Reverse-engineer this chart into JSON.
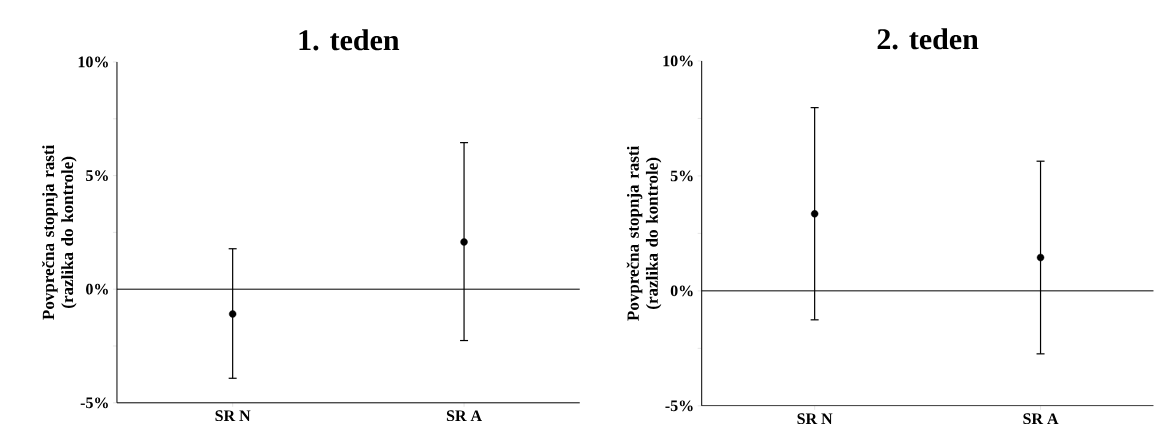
{
  "chart_data": [
    {
      "type": "scatter",
      "title": "1. teden",
      "ylabel": "Povprečna stopnja rasti (razlika do kontrole)",
      "categories": [
        "SR  N",
        "SR  A"
      ],
      "series": [
        {
          "color": "#000000",
          "values": [
            -1.09,
            2.08
          ],
          "errors": [
            [
              -3.92,
              1.78
            ],
            [
              -2.26,
              6.45
            ]
          ]
        }
      ],
      "ylim": [
        -5,
        10
      ],
      "yticks": [
        {
          "value": -5,
          "label": "-5%"
        },
        {
          "value": -2.5,
          "label": null
        },
        {
          "value": 0,
          "label": "0%"
        },
        {
          "value": 2.5,
          "label": null
        },
        {
          "value": 5,
          "label": "5%"
        },
        {
          "value": 7.5,
          "label": null
        },
        {
          "value": 10,
          "label": "10%"
        }
      ],
      "ref_lines": [
        {
          "axis": "y",
          "value": 0,
          "color": "#000000"
        }
      ],
      "marker": "circle"
    },
    {
      "type": "scatter",
      "title": "2. teden",
      "ylabel": "Povprečna stopnja rasti (razlika do kontrole)",
      "categories": [
        "SR  N",
        "SR  A"
      ],
      "series": [
        {
          "color": "#000000",
          "values": [
            3.35,
            1.45
          ],
          "errors": [
            [
              -1.26,
              7.97
            ],
            [
              -2.74,
              5.64
            ]
          ]
        }
      ],
      "ylim": [
        -5,
        10
      ],
      "yticks": [
        {
          "value": -5,
          "label": "-5%"
        },
        {
          "value": -2.5,
          "label": null
        },
        {
          "value": 0,
          "label": "0%"
        },
        {
          "value": 2.5,
          "label": null
        },
        {
          "value": 5,
          "label": "5%"
        },
        {
          "value": 7.5,
          "label": null
        },
        {
          "value": 10,
          "label": "10%"
        }
      ],
      "ref_lines": [
        {
          "axis": "y",
          "value": 0,
          "color": "#000000"
        }
      ],
      "marker": "circle"
    }
  ]
}
